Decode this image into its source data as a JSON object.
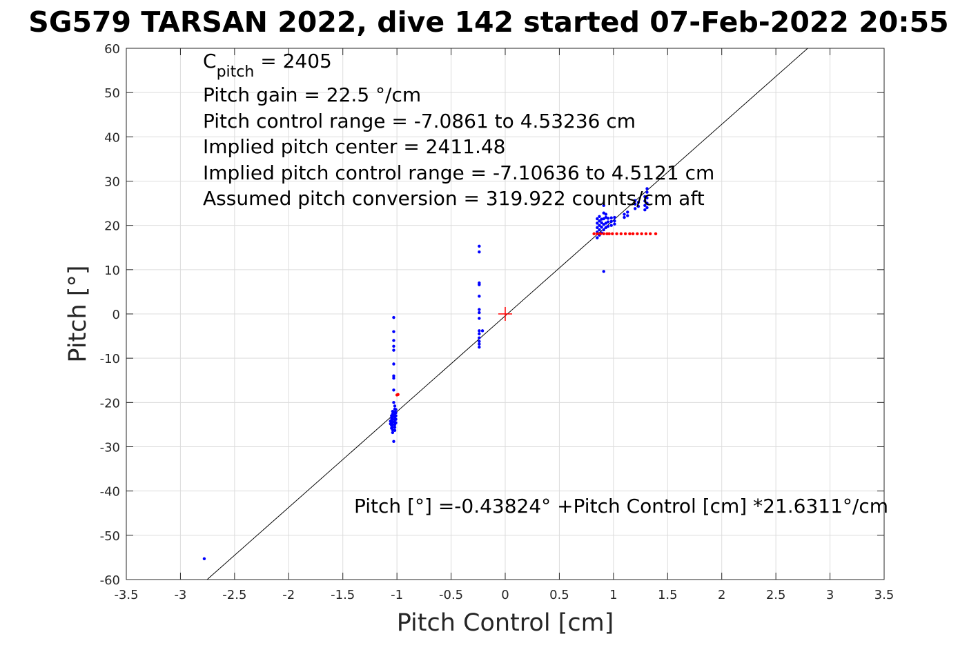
{
  "chart_data": {
    "type": "scatter",
    "title": "SG579 TARSAN 2022, dive 142 started 07-Feb-2022 20:55",
    "xlabel": "Pitch Control [cm]",
    "ylabel": "Pitch [°]",
    "xlim": [
      -3.5,
      3.5
    ],
    "ylim": [
      -60,
      60
    ],
    "grid": true,
    "x_ticks": [
      -3.5,
      -3,
      -2.5,
      -2,
      -1.5,
      -1,
      -0.5,
      0,
      0.5,
      1,
      1.5,
      2,
      2.5,
      3,
      3.5
    ],
    "x_tick_labels": [
      "-3.5",
      "-3",
      "-2.5",
      "-2",
      "-1.5",
      "-1",
      "-0.5",
      "0",
      "0.5",
      "1",
      "1.5",
      "2",
      "2.5",
      "3",
      "3.5"
    ],
    "y_ticks": [
      -60,
      -50,
      -40,
      -30,
      -20,
      -10,
      0,
      10,
      20,
      30,
      40,
      50,
      60
    ],
    "y_tick_labels": [
      "-60",
      "-50",
      "-40",
      "-30",
      "-20",
      "-10",
      "0",
      "10",
      "20",
      "30",
      "40",
      "50",
      "60"
    ],
    "annotations": {
      "c_pitch_main": "C",
      "c_pitch_sub": "pitch",
      "c_pitch_value": " = 2405",
      "pitch_gain": "Pitch gain = 22.5 °/cm",
      "pitch_control_range": "Pitch control range = -7.0861 to 4.53236 cm",
      "implied_center": "Implied pitch center = 2411.48",
      "implied_range": "Implied pitch control range = -7.10636 to 4.5121 cm",
      "assumed_conversion": "Assumed pitch conversion = 319.922 counts/cm aft",
      "fit_equation": "Pitch [°] =-0.43824° +Pitch Control [cm] *21.6311°/cm"
    },
    "fit_line": {
      "intercept": -0.43824,
      "slope": 21.6311,
      "color": "#000000"
    },
    "center_marker": {
      "x": 0,
      "y": 0,
      "color": "#ff0000",
      "shape": "plus"
    },
    "series": [
      {
        "color": "#0000ff",
        "points": [
          [
            -2.78,
            -55.3
          ],
          [
            -1.03,
            -0.8
          ],
          [
            -1.03,
            -4.0
          ],
          [
            -1.03,
            -6.0
          ],
          [
            -1.03,
            -7.3
          ],
          [
            -1.03,
            -8.2
          ],
          [
            -1.03,
            -11.3
          ],
          [
            -1.03,
            -14.0
          ],
          [
            -1.03,
            -14.5
          ],
          [
            -1.03,
            -17.2
          ],
          [
            -1.03,
            -20.0
          ],
          [
            -1.03,
            -28.8
          ],
          [
            -1.02,
            -20.8
          ],
          [
            -1.02,
            -21.5
          ],
          [
            -1.02,
            -22.2
          ],
          [
            -1.02,
            -22.8
          ],
          [
            -1.02,
            -23.3
          ],
          [
            -1.02,
            -23.9
          ],
          [
            -1.02,
            -24.4
          ],
          [
            -1.02,
            -25.0
          ],
          [
            -1.02,
            -25.6
          ],
          [
            -1.02,
            -26.3
          ],
          [
            -1.04,
            -22.0
          ],
          [
            -1.04,
            -22.6
          ],
          [
            -1.04,
            -23.2
          ],
          [
            -1.04,
            -23.8
          ],
          [
            -1.04,
            -24.4
          ],
          [
            -1.04,
            -25.0
          ],
          [
            -1.04,
            -25.6
          ],
          [
            -1.04,
            -26.2
          ],
          [
            -1.04,
            -26.8
          ],
          [
            -1.05,
            -23.0
          ],
          [
            -1.05,
            -23.5
          ],
          [
            -1.05,
            -24.0
          ],
          [
            -1.05,
            -24.6
          ],
          [
            -1.05,
            -25.2
          ],
          [
            -1.05,
            -25.8
          ],
          [
            -1.01,
            -21.6
          ],
          [
            -1.01,
            -22.3
          ],
          [
            -1.01,
            -23.0
          ],
          [
            -1.01,
            -23.8
          ],
          [
            -1.01,
            -24.6
          ],
          [
            -1.06,
            -24.2
          ],
          [
            -1.06,
            -24.8
          ],
          [
            -0.24,
            15.3
          ],
          [
            -0.24,
            14.0
          ],
          [
            -0.24,
            7.0
          ],
          [
            -0.24,
            6.6
          ],
          [
            -0.24,
            4.0
          ],
          [
            -0.24,
            1.0
          ],
          [
            -0.24,
            0.3
          ],
          [
            -0.24,
            -1.0
          ],
          [
            -0.24,
            -3.8
          ],
          [
            -0.24,
            -4.5
          ],
          [
            -0.24,
            -5.4
          ],
          [
            -0.24,
            -6.2
          ],
          [
            -0.24,
            -6.8
          ],
          [
            -0.24,
            -7.5
          ],
          [
            -0.21,
            -3.8
          ],
          [
            0.85,
            17.2
          ],
          [
            0.85,
            18.5
          ],
          [
            0.85,
            19.5
          ],
          [
            0.85,
            20.5
          ],
          [
            0.85,
            21.5
          ],
          [
            0.87,
            17.8
          ],
          [
            0.87,
            19.0
          ],
          [
            0.87,
            20.0
          ],
          [
            0.87,
            21.0
          ],
          [
            0.87,
            22.0
          ],
          [
            0.89,
            18.3
          ],
          [
            0.89,
            19.6
          ],
          [
            0.89,
            20.6
          ],
          [
            0.89,
            21.4
          ],
          [
            0.91,
            9.6
          ],
          [
            0.91,
            19.0
          ],
          [
            0.91,
            20.2
          ],
          [
            0.91,
            21.5
          ],
          [
            0.91,
            22.8
          ],
          [
            0.91,
            24.5
          ],
          [
            0.93,
            19.5
          ],
          [
            0.93,
            20.5
          ],
          [
            0.93,
            21.8
          ],
          [
            0.93,
            22.5
          ],
          [
            0.95,
            19.8
          ],
          [
            0.95,
            20.8
          ],
          [
            0.95,
            21.6
          ],
          [
            0.98,
            20.0
          ],
          [
            0.98,
            20.9
          ],
          [
            0.98,
            21.7
          ],
          [
            1.01,
            20.3
          ],
          [
            1.01,
            21.0
          ],
          [
            1.01,
            21.8
          ],
          [
            1.1,
            21.8
          ],
          [
            1.1,
            22.5
          ],
          [
            1.13,
            22.2
          ],
          [
            1.13,
            23.0
          ],
          [
            1.2,
            23.8
          ],
          [
            1.2,
            24.8
          ],
          [
            1.2,
            25.6
          ],
          [
            1.23,
            24.3
          ],
          [
            1.23,
            25.2
          ],
          [
            1.29,
            23.5
          ],
          [
            1.29,
            24.5
          ],
          [
            1.29,
            25.5
          ],
          [
            1.29,
            26.5
          ],
          [
            1.31,
            24.0
          ],
          [
            1.31,
            25.0
          ],
          [
            1.31,
            26.2
          ],
          [
            1.31,
            27.5
          ],
          [
            1.31,
            28.3
          ]
        ]
      },
      {
        "color": "#ff0000",
        "points": [
          [
            -0.99,
            -18.2
          ],
          [
            -1.0,
            -18.3
          ],
          [
            0.82,
            18.1
          ],
          [
            0.85,
            18.1
          ],
          [
            0.88,
            18.1
          ],
          [
            0.91,
            18.1
          ],
          [
            0.94,
            18.1
          ],
          [
            0.96,
            18.1
          ],
          [
            0.99,
            18.1
          ],
          [
            1.03,
            18.1
          ],
          [
            1.07,
            18.1
          ],
          [
            1.11,
            18.1
          ],
          [
            1.15,
            18.1
          ],
          [
            1.18,
            18.1
          ],
          [
            1.22,
            18.1
          ],
          [
            1.26,
            18.1
          ],
          [
            1.3,
            18.1
          ],
          [
            1.34,
            18.1
          ],
          [
            1.39,
            18.1
          ]
        ]
      }
    ]
  }
}
